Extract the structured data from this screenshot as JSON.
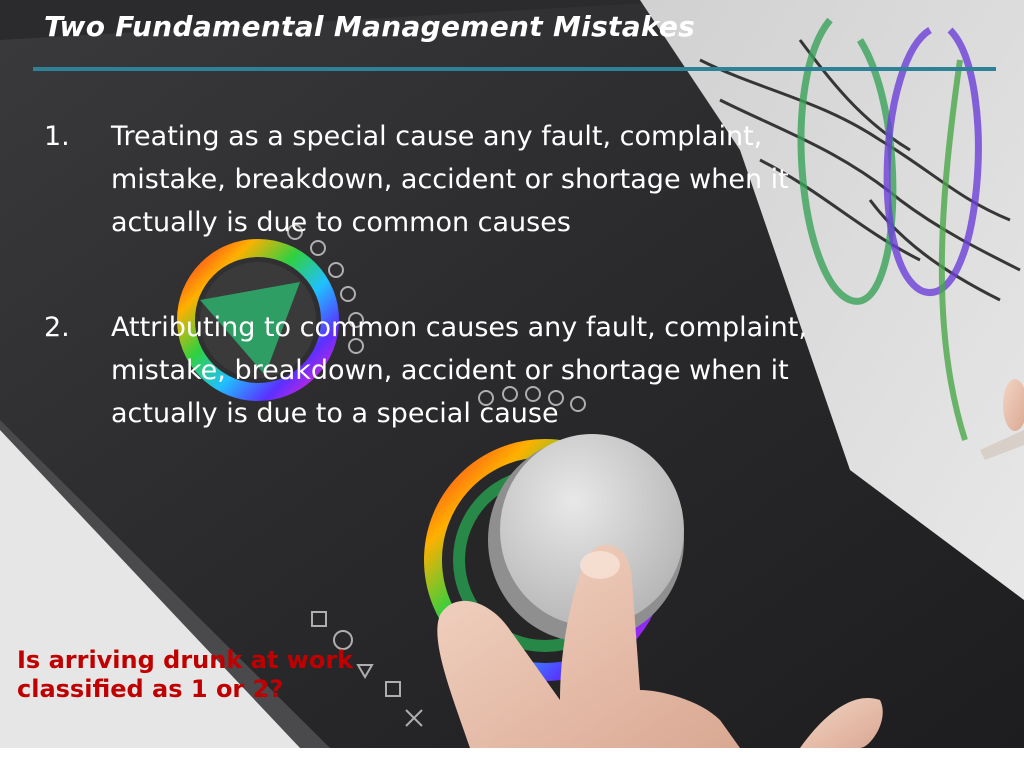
{
  "slide": {
    "title": "Two Fundamental Management Mistakes",
    "items": [
      {
        "number": "1.",
        "text": "Treating as a special cause any fault, complaint, mistake, breakdown, accident or shortage when it actually is due to common causes"
      },
      {
        "number": "2.",
        "text": "Attributing to common causes any fault, complaint, mistake, breakdown, accident or shortage when it actually is due to a special cause"
      }
    ],
    "question_line1": "Is arriving drunk at work",
    "question_line2": "classified as 1 or 2?"
  },
  "colors": {
    "title_text": "#ffffff",
    "rule": "#2f8197",
    "body_text": "#ffffff",
    "question_text": "#c00000"
  }
}
